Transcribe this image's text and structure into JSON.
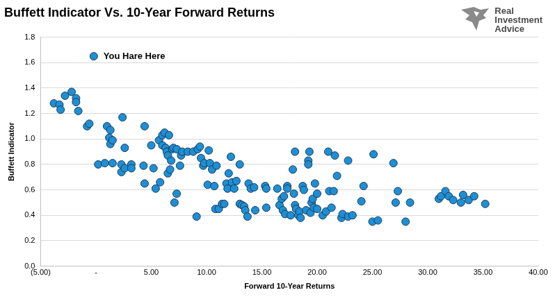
{
  "chart_data": {
    "type": "scatter",
    "title": "Buffett Indicator Vs. 10-Year Forward Returns",
    "source": "Real Investment Advice",
    "x_label": "Forward 10-Year Returns",
    "y_label": "Buffett Indicator",
    "color": "#1e8fd5",
    "marker": "circle",
    "grid": "y",
    "xlim": [
      -5,
      40
    ],
    "xticks": [
      {
        "value": -5,
        "label": "(5.00)"
      },
      {
        "value": 0,
        "label": "-"
      },
      {
        "value": 5,
        "label": "5.00"
      },
      {
        "value": 10,
        "label": "10.00"
      },
      {
        "value": 15,
        "label": "15.00"
      },
      {
        "value": 20,
        "label": "20.00"
      },
      {
        "value": 25,
        "label": "25.00"
      },
      {
        "value": 30,
        "label": "30.00"
      },
      {
        "value": 35,
        "label": "35.00"
      },
      {
        "value": 40,
        "label": "40.00"
      }
    ],
    "ylim": [
      0,
      1.8
    ],
    "yticks": [
      {
        "value": 0,
        "label": "0.0"
      },
      {
        "value": 0.2,
        "label": "0.2"
      },
      {
        "value": 0.4,
        "label": "0.4"
      },
      {
        "value": 0.6,
        "label": "0.6"
      },
      {
        "value": 0.8,
        "label": "0.8"
      },
      {
        "value": 1.0,
        "label": "1.0"
      },
      {
        "value": 1.2,
        "label": "1.2"
      },
      {
        "value": 1.4,
        "label": "1.4"
      },
      {
        "value": 1.6,
        "label": "1.6"
      },
      {
        "value": 1.8,
        "label": "1.8"
      }
    ],
    "annotations": [
      {
        "text": "You Hare Here",
        "x": -0.2,
        "y": 1.65
      }
    ],
    "x": [
      -3.8,
      -3.3,
      -3.2,
      -2.8,
      -2.2,
      -1.8,
      -1.8,
      -1.6,
      -0.8,
      -0.6,
      0.2,
      0.8,
      1.0,
      1.2,
      1.3,
      1.3,
      1.5,
      1.5,
      2.3,
      2.3,
      2.4,
      2.6,
      2.6,
      3.2,
      3.2,
      4.3,
      4.4,
      4.4,
      5.0,
      5.2,
      5.4,
      5.7,
      5.8,
      6.0,
      6.0,
      6.2,
      6.3,
      6.4,
      6.5,
      6.6,
      6.5,
      6.7,
      6.8,
      6.9,
      7.0,
      7.1,
      7.3,
      7.3,
      7.6,
      7.7,
      7.8,
      8.3,
      8.8,
      9.1,
      9.2,
      9.4,
      9.5,
      9.7,
      9.8,
      10.1,
      10.2,
      10.3,
      10.5,
      10.7,
      10.8,
      10.9,
      11.1,
      11.4,
      11.6,
      11.8,
      11.9,
      12.0,
      12.2,
      12.3,
      12.5,
      12.7,
      13.0,
      13.0,
      13.2,
      13.4,
      13.5,
      13.7,
      13.8,
      14.0,
      14.3,
      14.4,
      15.3,
      15.4,
      15.4,
      16.4,
      16.6,
      16.8,
      16.9,
      17.0,
      17.1,
      17.3,
      17.3,
      17.6,
      17.8,
      17.9,
      18.0,
      18.0,
      18.1,
      18.3,
      18.4,
      18.5,
      18.7,
      18.8,
      19.0,
      19.2,
      19.2,
      19.3,
      19.4,
      19.5,
      19.6,
      19.7,
      19.8,
      20.0,
      20.0,
      20.5,
      20.8,
      21.0,
      21.1,
      21.3,
      21.5,
      21.6,
      21.8,
      22.2,
      22.3,
      22.8,
      22.8,
      23.2,
      24.0,
      24.2,
      25.1,
      25.0,
      25.5,
      26.9,
      27.1,
      27.3,
      28.0,
      28.4,
      31.0,
      31.2,
      31.6,
      31.9,
      32.3,
      33.0,
      33.2,
      33.7,
      34.2,
      35.2
    ],
    "values": [
      1.28,
      1.27,
      1.23,
      1.34,
      1.37,
      1.32,
      1.29,
      1.22,
      1.1,
      1.12,
      0.8,
      0.81,
      1.1,
      1.01,
      1.07,
      0.96,
      0.99,
      0.81,
      0.8,
      0.74,
      1.17,
      0.93,
      0.77,
      0.8,
      0.77,
      0.79,
      1.1,
      0.65,
      0.95,
      0.77,
      0.61,
      0.99,
      0.66,
      0.95,
      1.03,
      1.05,
      0.93,
      0.9,
      0.87,
      1.03,
      0.73,
      0.76,
      0.83,
      0.92,
      0.93,
      0.5,
      0.57,
      0.92,
      0.79,
      0.87,
      0.9,
      0.9,
      0.9,
      0.39,
      0.92,
      0.94,
      0.85,
      0.79,
      0.81,
      0.64,
      0.91,
      0.81,
      0.76,
      0.63,
      0.45,
      0.79,
      0.45,
      0.49,
      0.49,
      0.65,
      0.61,
      0.73,
      0.86,
      0.66,
      0.61,
      0.67,
      0.8,
      0.49,
      0.48,
      0.47,
      0.44,
      0.39,
      0.65,
      0.61,
      0.62,
      0.44,
      0.63,
      0.61,
      0.46,
      0.61,
      0.48,
      0.53,
      0.44,
      0.55,
      0.41,
      0.63,
      0.61,
      0.4,
      0.76,
      0.57,
      0.9,
      0.48,
      0.45,
      0.4,
      0.43,
      0.38,
      0.63,
      0.6,
      0.44,
      0.83,
      0.8,
      0.9,
      0.42,
      0.5,
      0.53,
      0.46,
      0.65,
      0.57,
      0.45,
      0.4,
      0.43,
      0.9,
      0.59,
      0.46,
      0.59,
      0.87,
      0.71,
      0.38,
      0.41,
      0.83,
      0.39,
      0.4,
      0.51,
      0.63,
      0.88,
      0.35,
      0.36,
      0.81,
      0.5,
      0.59,
      0.35,
      0.5,
      0.53,
      0.55,
      0.59,
      0.55,
      0.52,
      0.5,
      0.56,
      0.52,
      0.55,
      0.49
    ]
  }
}
